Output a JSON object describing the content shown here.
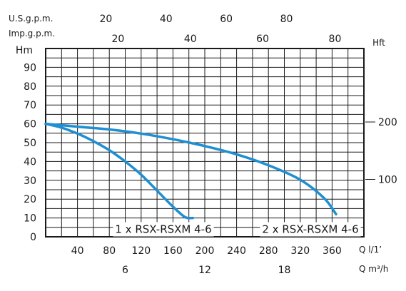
{
  "chart_data": {
    "type": "line",
    "axes": {
      "y_left": {
        "label": "Hm",
        "ticks": [
          0,
          10,
          20,
          30,
          40,
          50,
          60,
          70,
          80,
          90
        ],
        "range": [
          0,
          100
        ]
      },
      "y_right": {
        "label": "Hft",
        "ticks": [
          100,
          200
        ],
        "range": [
          0,
          328
        ]
      },
      "x_primary": {
        "label": "Q l/1’",
        "ticks": [
          40,
          80,
          120,
          160,
          200,
          240,
          280,
          320,
          360
        ],
        "range": [
          0,
          400
        ]
      },
      "x_m3h": {
        "label": "Q m³/h",
        "ticks": [
          6,
          12,
          18
        ],
        "range": [
          0,
          24
        ]
      },
      "x_usgpm": {
        "label": "U.S.g.p.m.",
        "ticks": [
          20,
          40,
          60,
          80
        ],
        "range": [
          0,
          105.7
        ]
      },
      "x_impgpm": {
        "label": "Imp.g.p.m.",
        "ticks": [
          20,
          40,
          60,
          80
        ],
        "range": [
          0,
          88
        ]
      }
    },
    "grid": true,
    "series": [
      {
        "name": "1 x RSX-RSXM 4-6",
        "x": [
          0,
          20,
          40,
          60,
          80,
          100,
          120,
          140,
          160,
          175,
          185
        ],
        "y": [
          60,
          58,
          54.8,
          50.8,
          46,
          40,
          33,
          24.5,
          16,
          10.5,
          10
        ]
      },
      {
        "name": "2 x RSX-RSXM 4-6",
        "x": [
          0,
          40,
          80,
          120,
          160,
          200,
          240,
          280,
          320,
          350,
          365
        ],
        "y": [
          60,
          58.5,
          57,
          54.8,
          51.8,
          48.2,
          43.8,
          38,
          30.3,
          20.5,
          12
        ]
      }
    ]
  }
}
